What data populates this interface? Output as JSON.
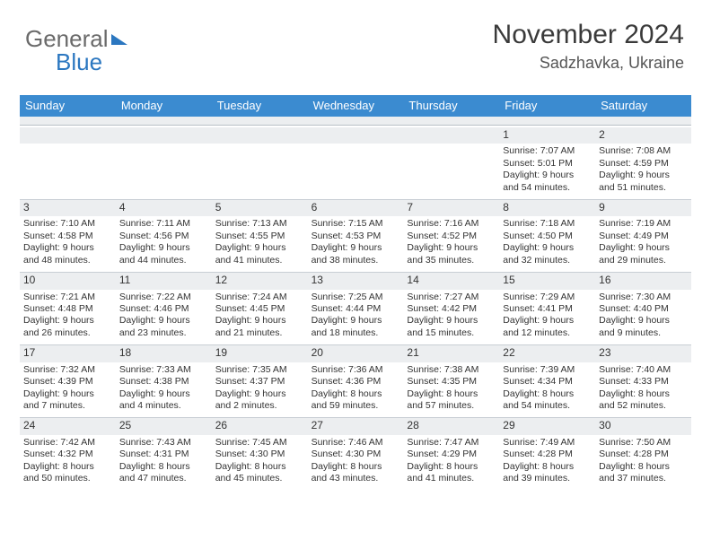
{
  "brand": {
    "part1": "General",
    "part2": "Blue"
  },
  "header": {
    "month": "November 2024",
    "location": "Sadzhavka, Ukraine"
  },
  "colors": {
    "header_bg": "#3b8bd0",
    "header_text": "#ffffff",
    "daynum_bg": "#eceef0",
    "body_text": "#333333",
    "brand_gray": "#6a6a6a",
    "brand_blue": "#2b77c0"
  },
  "daysOfWeek": [
    "Sunday",
    "Monday",
    "Tuesday",
    "Wednesday",
    "Thursday",
    "Friday",
    "Saturday"
  ],
  "weeks": [
    [
      {
        "n": "",
        "sr": "",
        "ss": "",
        "dl": ""
      },
      {
        "n": "",
        "sr": "",
        "ss": "",
        "dl": ""
      },
      {
        "n": "",
        "sr": "",
        "ss": "",
        "dl": ""
      },
      {
        "n": "",
        "sr": "",
        "ss": "",
        "dl": ""
      },
      {
        "n": "",
        "sr": "",
        "ss": "",
        "dl": ""
      },
      {
        "n": "1",
        "sr": "Sunrise: 7:07 AM",
        "ss": "Sunset: 5:01 PM",
        "dl": "Daylight: 9 hours and 54 minutes."
      },
      {
        "n": "2",
        "sr": "Sunrise: 7:08 AM",
        "ss": "Sunset: 4:59 PM",
        "dl": "Daylight: 9 hours and 51 minutes."
      }
    ],
    [
      {
        "n": "3",
        "sr": "Sunrise: 7:10 AM",
        "ss": "Sunset: 4:58 PM",
        "dl": "Daylight: 9 hours and 48 minutes."
      },
      {
        "n": "4",
        "sr": "Sunrise: 7:11 AM",
        "ss": "Sunset: 4:56 PM",
        "dl": "Daylight: 9 hours and 44 minutes."
      },
      {
        "n": "5",
        "sr": "Sunrise: 7:13 AM",
        "ss": "Sunset: 4:55 PM",
        "dl": "Daylight: 9 hours and 41 minutes."
      },
      {
        "n": "6",
        "sr": "Sunrise: 7:15 AM",
        "ss": "Sunset: 4:53 PM",
        "dl": "Daylight: 9 hours and 38 minutes."
      },
      {
        "n": "7",
        "sr": "Sunrise: 7:16 AM",
        "ss": "Sunset: 4:52 PM",
        "dl": "Daylight: 9 hours and 35 minutes."
      },
      {
        "n": "8",
        "sr": "Sunrise: 7:18 AM",
        "ss": "Sunset: 4:50 PM",
        "dl": "Daylight: 9 hours and 32 minutes."
      },
      {
        "n": "9",
        "sr": "Sunrise: 7:19 AM",
        "ss": "Sunset: 4:49 PM",
        "dl": "Daylight: 9 hours and 29 minutes."
      }
    ],
    [
      {
        "n": "10",
        "sr": "Sunrise: 7:21 AM",
        "ss": "Sunset: 4:48 PM",
        "dl": "Daylight: 9 hours and 26 minutes."
      },
      {
        "n": "11",
        "sr": "Sunrise: 7:22 AM",
        "ss": "Sunset: 4:46 PM",
        "dl": "Daylight: 9 hours and 23 minutes."
      },
      {
        "n": "12",
        "sr": "Sunrise: 7:24 AM",
        "ss": "Sunset: 4:45 PM",
        "dl": "Daylight: 9 hours and 21 minutes."
      },
      {
        "n": "13",
        "sr": "Sunrise: 7:25 AM",
        "ss": "Sunset: 4:44 PM",
        "dl": "Daylight: 9 hours and 18 minutes."
      },
      {
        "n": "14",
        "sr": "Sunrise: 7:27 AM",
        "ss": "Sunset: 4:42 PM",
        "dl": "Daylight: 9 hours and 15 minutes."
      },
      {
        "n": "15",
        "sr": "Sunrise: 7:29 AM",
        "ss": "Sunset: 4:41 PM",
        "dl": "Daylight: 9 hours and 12 minutes."
      },
      {
        "n": "16",
        "sr": "Sunrise: 7:30 AM",
        "ss": "Sunset: 4:40 PM",
        "dl": "Daylight: 9 hours and 9 minutes."
      }
    ],
    [
      {
        "n": "17",
        "sr": "Sunrise: 7:32 AM",
        "ss": "Sunset: 4:39 PM",
        "dl": "Daylight: 9 hours and 7 minutes."
      },
      {
        "n": "18",
        "sr": "Sunrise: 7:33 AM",
        "ss": "Sunset: 4:38 PM",
        "dl": "Daylight: 9 hours and 4 minutes."
      },
      {
        "n": "19",
        "sr": "Sunrise: 7:35 AM",
        "ss": "Sunset: 4:37 PM",
        "dl": "Daylight: 9 hours and 2 minutes."
      },
      {
        "n": "20",
        "sr": "Sunrise: 7:36 AM",
        "ss": "Sunset: 4:36 PM",
        "dl": "Daylight: 8 hours and 59 minutes."
      },
      {
        "n": "21",
        "sr": "Sunrise: 7:38 AM",
        "ss": "Sunset: 4:35 PM",
        "dl": "Daylight: 8 hours and 57 minutes."
      },
      {
        "n": "22",
        "sr": "Sunrise: 7:39 AM",
        "ss": "Sunset: 4:34 PM",
        "dl": "Daylight: 8 hours and 54 minutes."
      },
      {
        "n": "23",
        "sr": "Sunrise: 7:40 AM",
        "ss": "Sunset: 4:33 PM",
        "dl": "Daylight: 8 hours and 52 minutes."
      }
    ],
    [
      {
        "n": "24",
        "sr": "Sunrise: 7:42 AM",
        "ss": "Sunset: 4:32 PM",
        "dl": "Daylight: 8 hours and 50 minutes."
      },
      {
        "n": "25",
        "sr": "Sunrise: 7:43 AM",
        "ss": "Sunset: 4:31 PM",
        "dl": "Daylight: 8 hours and 47 minutes."
      },
      {
        "n": "26",
        "sr": "Sunrise: 7:45 AM",
        "ss": "Sunset: 4:30 PM",
        "dl": "Daylight: 8 hours and 45 minutes."
      },
      {
        "n": "27",
        "sr": "Sunrise: 7:46 AM",
        "ss": "Sunset: 4:30 PM",
        "dl": "Daylight: 8 hours and 43 minutes."
      },
      {
        "n": "28",
        "sr": "Sunrise: 7:47 AM",
        "ss": "Sunset: 4:29 PM",
        "dl": "Daylight: 8 hours and 41 minutes."
      },
      {
        "n": "29",
        "sr": "Sunrise: 7:49 AM",
        "ss": "Sunset: 4:28 PM",
        "dl": "Daylight: 8 hours and 39 minutes."
      },
      {
        "n": "30",
        "sr": "Sunrise: 7:50 AM",
        "ss": "Sunset: 4:28 PM",
        "dl": "Daylight: 8 hours and 37 minutes."
      }
    ]
  ]
}
